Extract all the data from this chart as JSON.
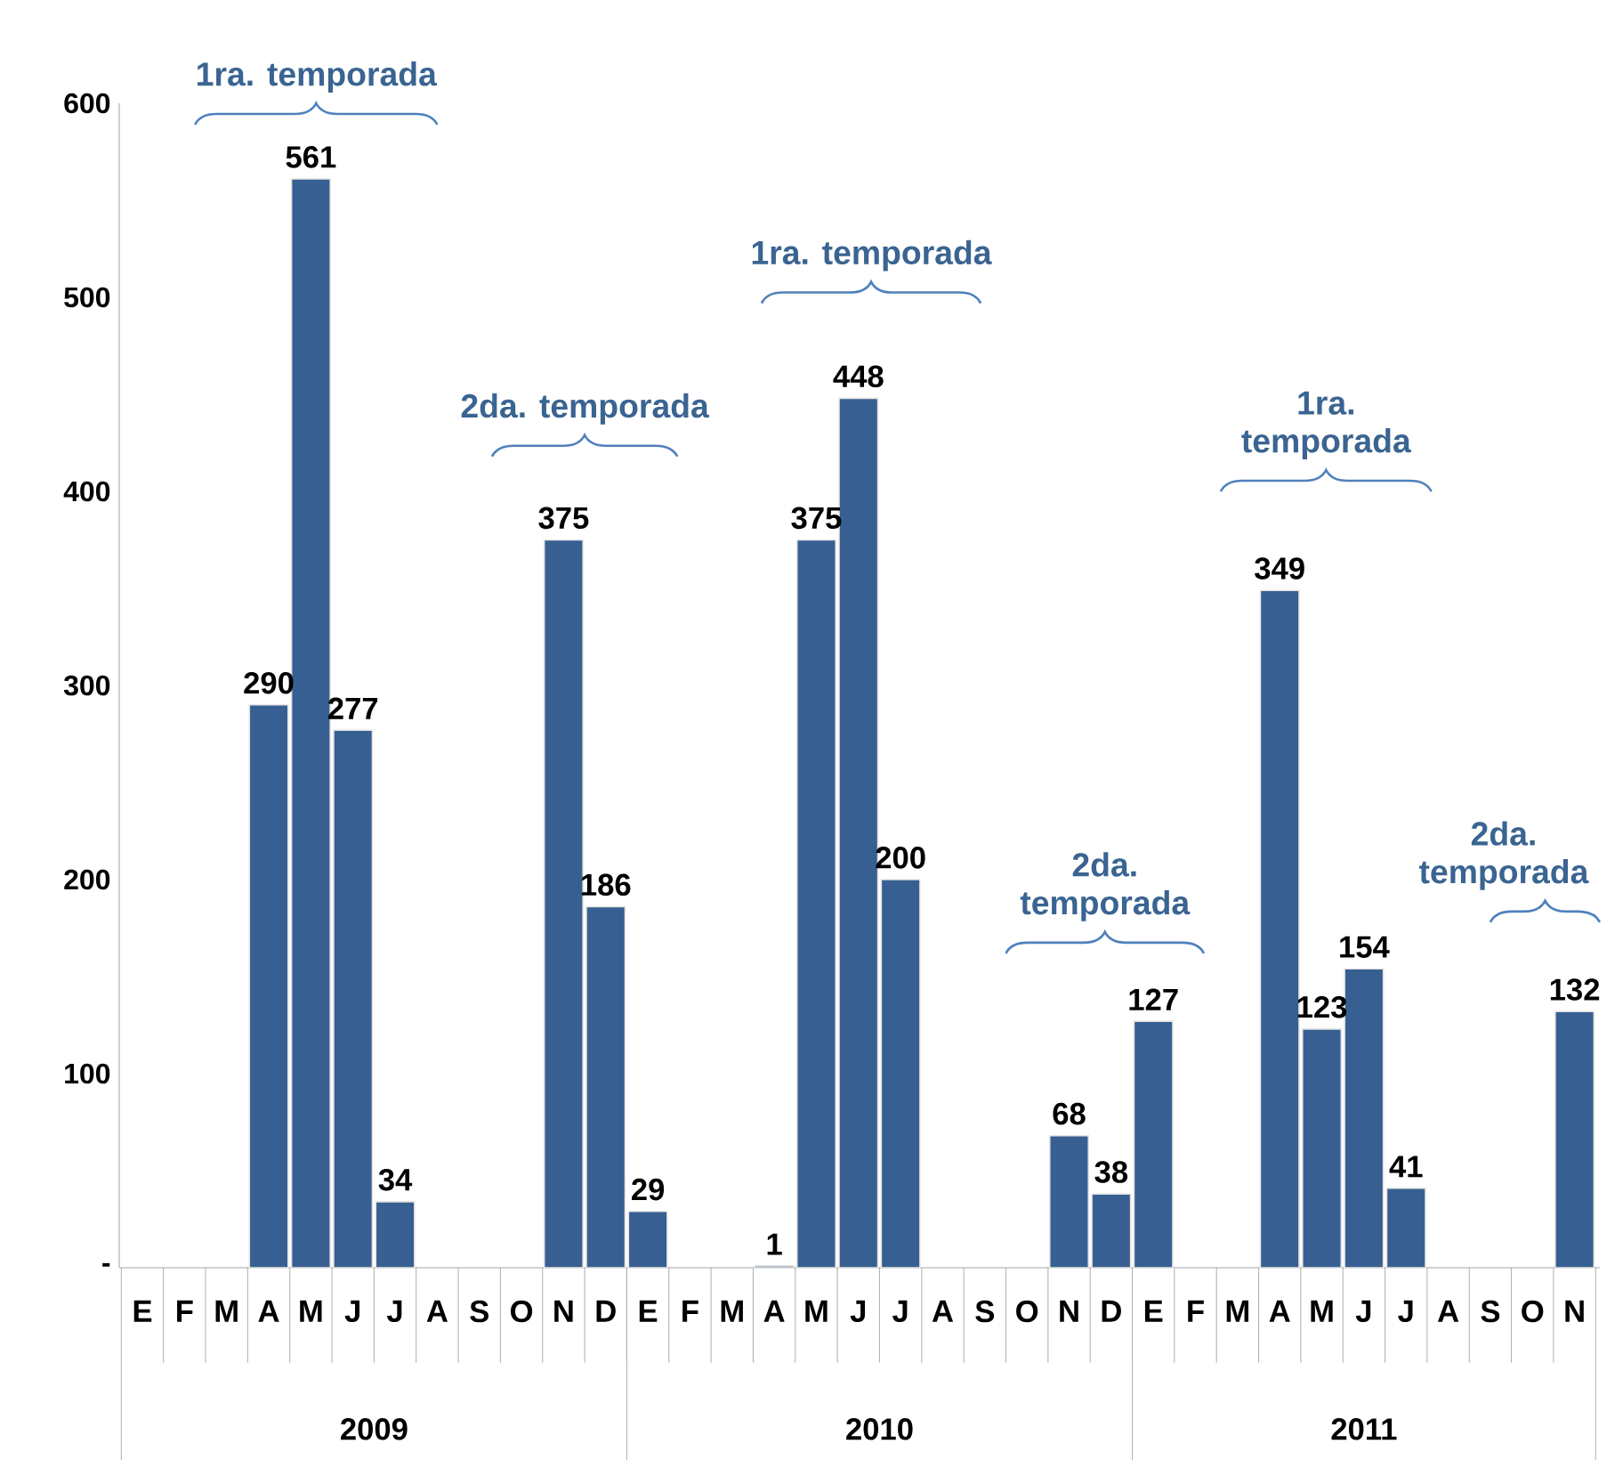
{
  "chart_data": {
    "type": "bar",
    "categories": [
      "E",
      "F",
      "M",
      "A",
      "M",
      "J",
      "J",
      "A",
      "S",
      "O",
      "N",
      "D",
      "E",
      "F",
      "M",
      "A",
      "M",
      "J",
      "J",
      "A",
      "S",
      "O",
      "N",
      "D",
      "E",
      "F",
      "M",
      "A",
      "M",
      "J",
      "J",
      "A",
      "S",
      "O",
      "N"
    ],
    "values": [
      null,
      null,
      null,
      290,
      561,
      277,
      34,
      null,
      null,
      null,
      375,
      186,
      29,
      null,
      null,
      1,
      375,
      448,
      200,
      null,
      null,
      null,
      68,
      38,
      127,
      null,
      null,
      349,
      123,
      154,
      41,
      null,
      null,
      null,
      132
    ],
    "color": "#375f91",
    "ylim": [
      0,
      600
    ],
    "yticks": [
      {
        "value": 0,
        "label": "-"
      },
      100,
      200,
      300,
      400,
      500,
      600
    ],
    "data_labels": true,
    "annotations": [
      "1ra. temporada",
      "2da. temporada",
      "1ra. temporada",
      "2da. temporada",
      "1ra. temporada",
      "2da. temporada",
      "2009",
      "2010",
      "2011"
    ]
  }
}
